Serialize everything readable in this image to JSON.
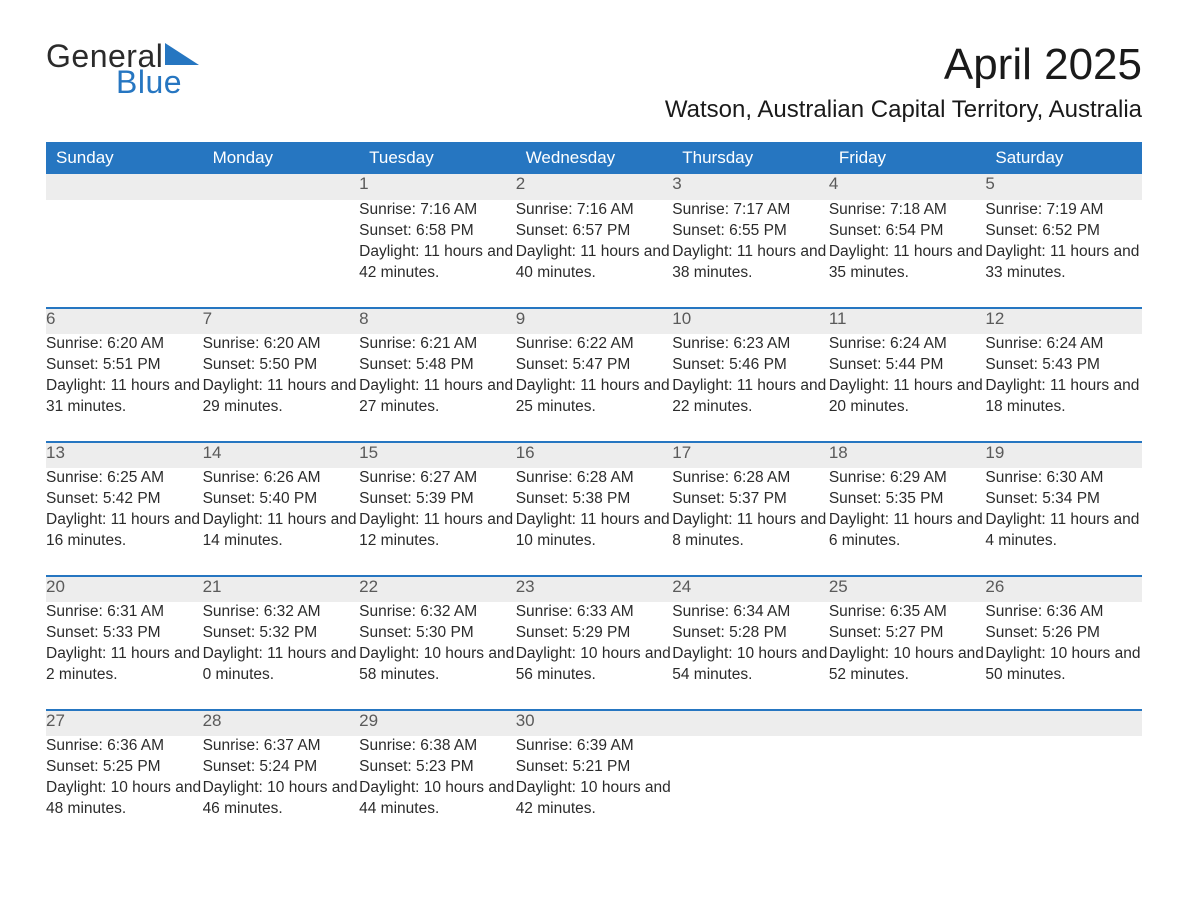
{
  "logo": {
    "line1": "General",
    "line2": "Blue",
    "tri_color": "#2676c1"
  },
  "title": "April 2025",
  "location": "Watson, Australian Capital Territory, Australia",
  "header_bg": "#2676c1",
  "header_fg": "#ffffff",
  "daynum_bg": "#ededed",
  "rule_color": "#2676c1",
  "text_color": "#2b2b2b",
  "day_headers": [
    "Sunday",
    "Monday",
    "Tuesday",
    "Wednesday",
    "Thursday",
    "Friday",
    "Saturday"
  ],
  "weeks": [
    [
      null,
      null,
      {
        "d": "1",
        "sr": "7:16 AM",
        "ss": "6:58 PM",
        "dl": "11 hours and 42 minutes."
      },
      {
        "d": "2",
        "sr": "7:16 AM",
        "ss": "6:57 PM",
        "dl": "11 hours and 40 minutes."
      },
      {
        "d": "3",
        "sr": "7:17 AM",
        "ss": "6:55 PM",
        "dl": "11 hours and 38 minutes."
      },
      {
        "d": "4",
        "sr": "7:18 AM",
        "ss": "6:54 PM",
        "dl": "11 hours and 35 minutes."
      },
      {
        "d": "5",
        "sr": "7:19 AM",
        "ss": "6:52 PM",
        "dl": "11 hours and 33 minutes."
      }
    ],
    [
      {
        "d": "6",
        "sr": "6:20 AM",
        "ss": "5:51 PM",
        "dl": "11 hours and 31 minutes."
      },
      {
        "d": "7",
        "sr": "6:20 AM",
        "ss": "5:50 PM",
        "dl": "11 hours and 29 minutes."
      },
      {
        "d": "8",
        "sr": "6:21 AM",
        "ss": "5:48 PM",
        "dl": "11 hours and 27 minutes."
      },
      {
        "d": "9",
        "sr": "6:22 AM",
        "ss": "5:47 PM",
        "dl": "11 hours and 25 minutes."
      },
      {
        "d": "10",
        "sr": "6:23 AM",
        "ss": "5:46 PM",
        "dl": "11 hours and 22 minutes."
      },
      {
        "d": "11",
        "sr": "6:24 AM",
        "ss": "5:44 PM",
        "dl": "11 hours and 20 minutes."
      },
      {
        "d": "12",
        "sr": "6:24 AM",
        "ss": "5:43 PM",
        "dl": "11 hours and 18 minutes."
      }
    ],
    [
      {
        "d": "13",
        "sr": "6:25 AM",
        "ss": "5:42 PM",
        "dl": "11 hours and 16 minutes."
      },
      {
        "d": "14",
        "sr": "6:26 AM",
        "ss": "5:40 PM",
        "dl": "11 hours and 14 minutes."
      },
      {
        "d": "15",
        "sr": "6:27 AM",
        "ss": "5:39 PM",
        "dl": "11 hours and 12 minutes."
      },
      {
        "d": "16",
        "sr": "6:28 AM",
        "ss": "5:38 PM",
        "dl": "11 hours and 10 minutes."
      },
      {
        "d": "17",
        "sr": "6:28 AM",
        "ss": "5:37 PM",
        "dl": "11 hours and 8 minutes."
      },
      {
        "d": "18",
        "sr": "6:29 AM",
        "ss": "5:35 PM",
        "dl": "11 hours and 6 minutes."
      },
      {
        "d": "19",
        "sr": "6:30 AM",
        "ss": "5:34 PM",
        "dl": "11 hours and 4 minutes."
      }
    ],
    [
      {
        "d": "20",
        "sr": "6:31 AM",
        "ss": "5:33 PM",
        "dl": "11 hours and 2 minutes."
      },
      {
        "d": "21",
        "sr": "6:32 AM",
        "ss": "5:32 PM",
        "dl": "11 hours and 0 minutes."
      },
      {
        "d": "22",
        "sr": "6:32 AM",
        "ss": "5:30 PM",
        "dl": "10 hours and 58 minutes."
      },
      {
        "d": "23",
        "sr": "6:33 AM",
        "ss": "5:29 PM",
        "dl": "10 hours and 56 minutes."
      },
      {
        "d": "24",
        "sr": "6:34 AM",
        "ss": "5:28 PM",
        "dl": "10 hours and 54 minutes."
      },
      {
        "d": "25",
        "sr": "6:35 AM",
        "ss": "5:27 PM",
        "dl": "10 hours and 52 minutes."
      },
      {
        "d": "26",
        "sr": "6:36 AM",
        "ss": "5:26 PM",
        "dl": "10 hours and 50 minutes."
      }
    ],
    [
      {
        "d": "27",
        "sr": "6:36 AM",
        "ss": "5:25 PM",
        "dl": "10 hours and 48 minutes."
      },
      {
        "d": "28",
        "sr": "6:37 AM",
        "ss": "5:24 PM",
        "dl": "10 hours and 46 minutes."
      },
      {
        "d": "29",
        "sr": "6:38 AM",
        "ss": "5:23 PM",
        "dl": "10 hours and 44 minutes."
      },
      {
        "d": "30",
        "sr": "6:39 AM",
        "ss": "5:21 PM",
        "dl": "10 hours and 42 minutes."
      },
      null,
      null,
      null
    ]
  ],
  "labels": {
    "sunrise": "Sunrise: ",
    "sunset": "Sunset: ",
    "daylight": "Daylight: "
  }
}
